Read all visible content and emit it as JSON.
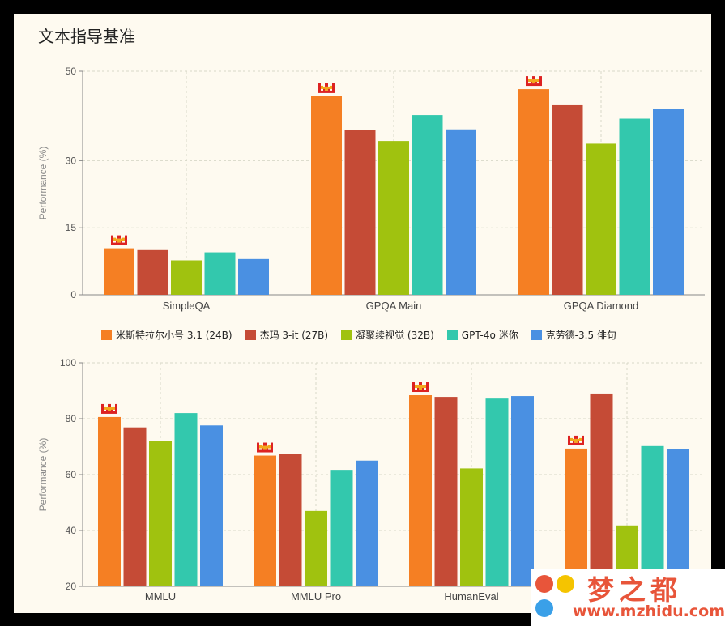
{
  "title": "文本指导基准",
  "colors": [
    "#f57f23",
    "#c54b36",
    "#a0c20f",
    "#33c8ad",
    "#4a90e2"
  ],
  "chart_data": [
    {
      "type": "bar",
      "ylabel": "Performance (%)",
      "ylim": [
        0,
        50
      ],
      "yticks": [
        0,
        15,
        30,
        50
      ],
      "grid": true,
      "categories": [
        "SimpleQA",
        "GPQA Main",
        "GPQA Diamond"
      ],
      "series": [
        {
          "name": "米斯特拉尔小号 3.1 (24B)",
          "values": [
            10.4,
            44.4,
            46.0
          ]
        },
        {
          "name": "杰玛 3-it (27B)",
          "values": [
            10.0,
            36.8,
            42.4
          ]
        },
        {
          "name": "凝聚续视觉 (32B)",
          "values": [
            7.7,
            34.4,
            33.8
          ]
        },
        {
          "name": "GPT-4o 迷你",
          "values": [
            9.5,
            40.2,
            39.4
          ]
        },
        {
          "name": "克劳德-3.5 俳句",
          "values": [
            8.0,
            37.0,
            41.6
          ]
        }
      ],
      "winner_icon": "pixel-crown-icon"
    },
    {
      "type": "bar",
      "ylabel": "Performance (%)",
      "ylim": [
        20,
        100
      ],
      "yticks": [
        20,
        40,
        60,
        80,
        100
      ],
      "grid": true,
      "categories": [
        "MMLU",
        "MMLU Pro",
        "HumanEval",
        ""
      ],
      "series": [
        {
          "name": "米斯特拉尔小号 3.1 (24B)",
          "values": [
            80.6,
            66.8,
            88.4,
            69.3
          ]
        },
        {
          "name": "杰玛 3-it (27B)",
          "values": [
            76.9,
            67.5,
            87.8,
            89.0
          ]
        },
        {
          "name": "凝聚续视觉 (32B)",
          "values": [
            72.1,
            47.0,
            62.2,
            41.8
          ]
        },
        {
          "name": "GPT-4o 迷你",
          "values": [
            82.0,
            61.7,
            87.2,
            70.2
          ]
        },
        {
          "name": "克劳德-3.5 俳句",
          "values": [
            77.6,
            65.0,
            88.1,
            69.2
          ]
        }
      ],
      "winner_icon": "pixel-crown-icon"
    }
  ],
  "legend_position": "between charts",
  "watermark": {
    "title": "梦之都",
    "url": "www.mzhidu.com"
  }
}
